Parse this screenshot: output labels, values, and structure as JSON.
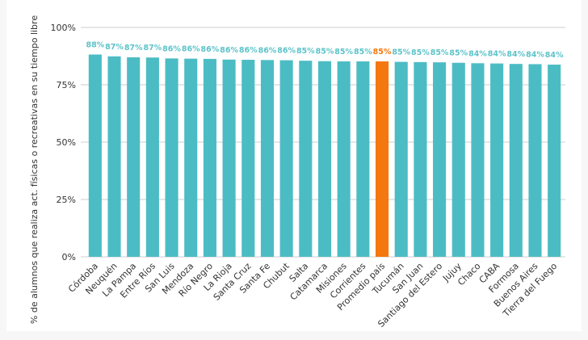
{
  "chart_data": {
    "type": "bar",
    "title": "",
    "xlabel": "",
    "ylabel": "% de alumnos que realiza act. físicas o recreativas en su tiempo libre",
    "ylim": [
      0,
      100
    ],
    "yticks": [
      {
        "value": 0,
        "label": "0%"
      },
      {
        "value": 25,
        "label": "25%"
      },
      {
        "value": 50,
        "label": "50%"
      },
      {
        "value": 75,
        "label": "75%"
      },
      {
        "value": 100,
        "label": "100%"
      }
    ],
    "grid": true,
    "categories": [
      "Córdoba",
      "Neuquén",
      "La Pampa",
      "Entre Ríos",
      "San Luis",
      "Mendoza",
      "Río Negro",
      "La Rioja",
      "Santa Cruz",
      "Santa Fe",
      "Chubut",
      "Salta",
      "Catamarca",
      "Misiones",
      "Corrientes",
      "Promedio país",
      "Tucumán",
      "San Juan",
      "Santiago del Estero",
      "Jujuy",
      "Chaco",
      "CABA",
      "Formosa",
      "Buenos Aires",
      "Tierra del Fuego"
    ],
    "values": [
      88,
      87,
      87,
      87,
      86,
      86,
      86,
      86,
      86,
      86,
      86,
      85,
      85,
      85,
      85,
      85,
      85,
      85,
      85,
      85,
      84,
      84,
      84,
      84,
      84
    ],
    "bar_heights": [
      88.2,
      87.4,
      87.0,
      86.9,
      86.5,
      86.4,
      86.3,
      86.0,
      85.9,
      85.8,
      85.7,
      85.5,
      85.3,
      85.2,
      85.2,
      85.2,
      85.0,
      84.9,
      84.8,
      84.6,
      84.4,
      84.3,
      84.1,
      84.0,
      83.8
    ],
    "value_labels": [
      "88%",
      "87%",
      "87%",
      "87%",
      "86%",
      "86%",
      "86%",
      "86%",
      "86%",
      "86%",
      "86%",
      "85%",
      "85%",
      "85%",
      "85%",
      "85%",
      "85%",
      "85%",
      "85%",
      "85%",
      "84%",
      "84%",
      "84%",
      "84%",
      "84%"
    ],
    "highlight_index": 15,
    "colors": {
      "bar": "#4cbcc4",
      "highlight": "#f5770f",
      "label": "#5cc3c9",
      "highlight_label": "#f5770f",
      "grid": "#cccccc"
    }
  }
}
